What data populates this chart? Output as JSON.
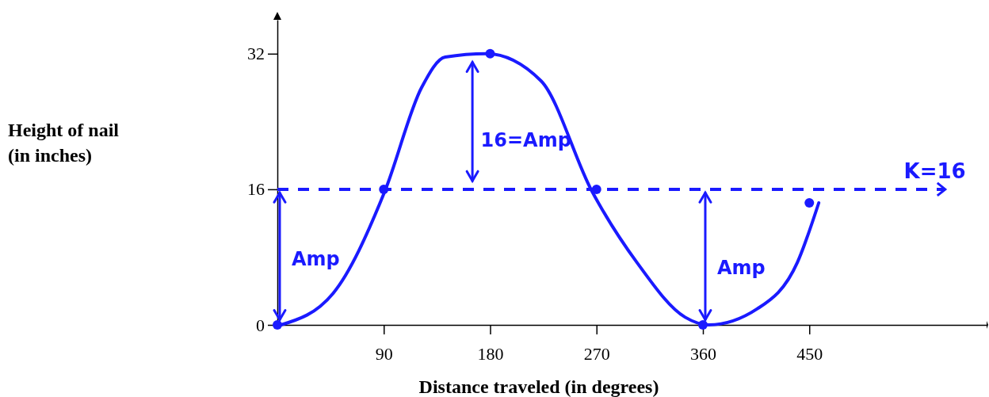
{
  "chart_data": {
    "type": "line",
    "xlabel": "Distance traveled (in degrees)",
    "xlim": [
      0,
      600
    ],
    "ylim": [
      0,
      36
    ],
    "xticks": [
      90,
      180,
      270,
      360,
      450
    ],
    "yticks": [
      0,
      16,
      32
    ],
    "grid": false,
    "line_style": "solid",
    "series": [
      {
        "color": "#1a1aff",
        "x": [
          3,
          47,
          91,
          122,
          142,
          177,
          223,
          266,
          304,
          345,
          365,
          406,
          440,
          458
        ],
        "values": [
          0,
          3.7,
          15.8,
          28,
          31.6,
          32,
          28.8,
          15.8,
          7.4,
          0.9,
          0,
          1.9,
          7.4,
          14.4
        ]
      },
      {
        "type": "scatter",
        "color": "#1a1aff",
        "marker": "circle",
        "x": [
          0,
          90,
          180,
          270,
          360,
          450
        ],
        "values": [
          0,
          16,
          32,
          16,
          0,
          14.4
        ]
      }
    ],
    "ref_lines": [
      {
        "axis": "y",
        "value": 16,
        "label": "K=16",
        "color": "#1a1aff",
        "line_style": "dashed"
      }
    ],
    "annotations": [
      "Height of nail\n(in inches)",
      "Amp",
      "16=Amp",
      "Amp"
    ]
  }
}
